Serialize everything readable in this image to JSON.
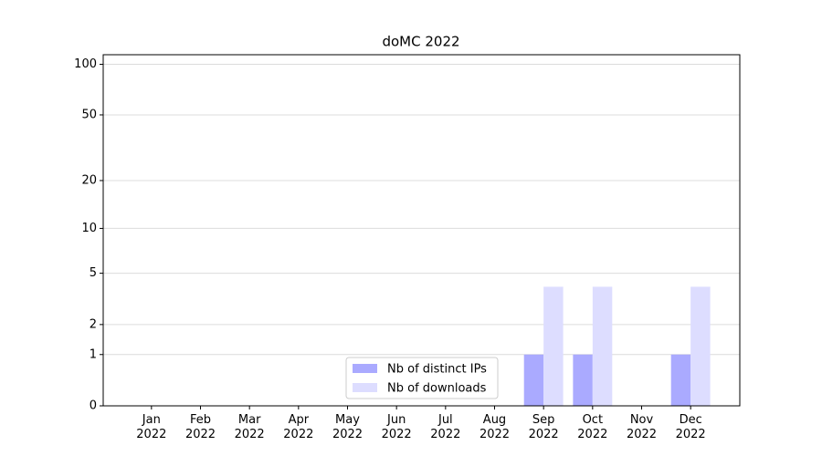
{
  "chart_data": {
    "type": "bar",
    "title": "doMC 2022",
    "categories": [
      "Jan\n2022",
      "Feb\n2022",
      "Mar\n2022",
      "Apr\n2022",
      "May\n2022",
      "Jun\n2022",
      "Jul\n2022",
      "Aug\n2022",
      "Sep\n2022",
      "Oct\n2022",
      "Nov\n2022",
      "Dec\n2022"
    ],
    "series": [
      {
        "name": "Nb of distinct IPs",
        "color": "#aaaaff",
        "values": [
          0,
          0,
          0,
          0,
          0,
          0,
          0,
          0,
          1,
          1,
          0,
          1
        ]
      },
      {
        "name": "Nb of downloads",
        "color": "#ddddff",
        "values": [
          0,
          0,
          0,
          0,
          0,
          0,
          0,
          0,
          4,
          4,
          0,
          4
        ]
      }
    ],
    "yscale": "log1p",
    "ylim": [
      0,
      114
    ],
    "yticks": [
      0,
      1,
      2,
      5,
      10,
      20,
      50,
      100
    ],
    "grid": true,
    "legend": "lower center"
  }
}
